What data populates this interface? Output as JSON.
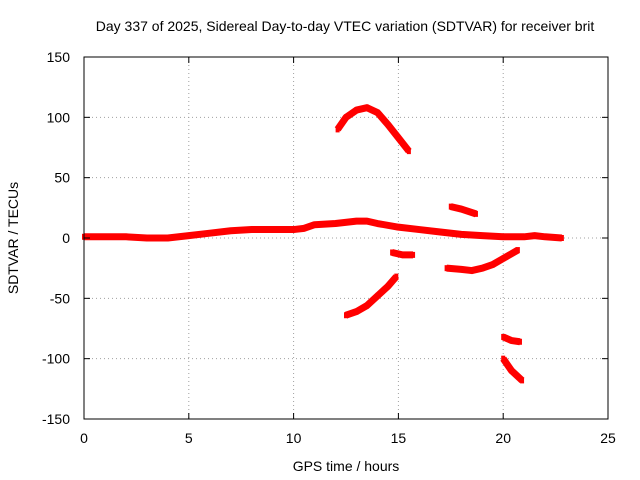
{
  "chart_data": {
    "type": "line",
    "title": "Day 337 of 2025, Sidereal Day-to-day VTEC variation (SDTVAR) for receiver brit",
    "xlabel": "GPS time / hours",
    "ylabel": "SDTVAR / TECUs",
    "xlim": [
      0,
      25
    ],
    "ylim": [
      -150,
      150
    ],
    "xticks": [
      0,
      5,
      10,
      15,
      20,
      25
    ],
    "yticks": [
      -150,
      -100,
      -50,
      0,
      50,
      100,
      150
    ],
    "xtick_labels": [
      "0",
      "5",
      "10",
      "15",
      "20",
      "25"
    ],
    "ytick_labels": [
      "-150",
      "-100",
      "-50",
      "0",
      "50",
      "100",
      "150"
    ],
    "grid": true,
    "color": "#ff0000",
    "series": [
      {
        "name": "arc-main",
        "x": [
          0,
          1,
          2,
          3,
          4,
          5,
          6,
          7,
          8,
          9,
          10,
          10.5,
          11,
          12,
          13,
          13.5,
          14,
          15,
          16,
          17,
          18,
          19,
          20,
          20.5,
          21,
          21.5,
          22,
          22.8
        ],
        "y": [
          1,
          1,
          1,
          0,
          0,
          2,
          4,
          6,
          7,
          7,
          7,
          8,
          11,
          12,
          14,
          14,
          12,
          9,
          7,
          5,
          3,
          2,
          1,
          1,
          1,
          2,
          1,
          0
        ]
      },
      {
        "name": "arc-hump",
        "x": [
          12.1,
          12.5,
          13,
          13.5,
          14,
          14.5,
          15,
          15.5
        ],
        "y": [
          90,
          100,
          106,
          108,
          104,
          94,
          83,
          72
        ]
      },
      {
        "name": "arc-low-rising",
        "x": [
          12.5,
          13,
          13.5,
          14,
          14.5,
          14.9
        ],
        "y": [
          -64,
          -61,
          -56,
          -48,
          -40,
          -32
        ]
      },
      {
        "name": "arc-short-1",
        "x": [
          14.7,
          15.2,
          15.7
        ],
        "y": [
          -12,
          -14,
          -14
        ]
      },
      {
        "name": "arc-short-2",
        "x": [
          17.5,
          18,
          18.7
        ],
        "y": [
          26,
          24,
          20
        ]
      },
      {
        "name": "arc-trough",
        "x": [
          17.3,
          18,
          18.5,
          19,
          19.5,
          20,
          20.7
        ],
        "y": [
          -25,
          -26,
          -27,
          -25,
          -22,
          -17,
          -10
        ]
      },
      {
        "name": "arc-short-3",
        "x": [
          20,
          20.4,
          20.8
        ],
        "y": [
          -82,
          -85,
          -86
        ]
      },
      {
        "name": "arc-falling",
        "x": [
          20,
          20.4,
          20.9
        ],
        "y": [
          -100,
          -110,
          -118
        ]
      }
    ]
  }
}
